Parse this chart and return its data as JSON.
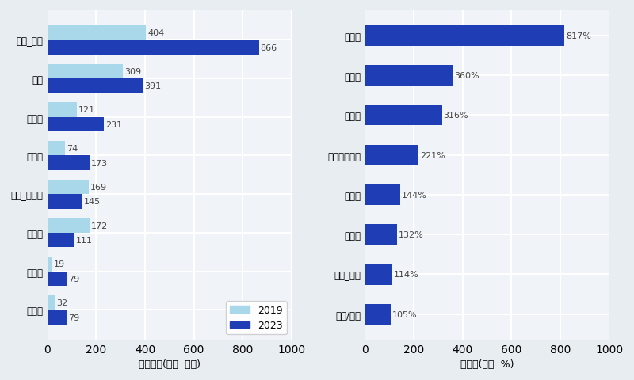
{
  "left_categories": [
    "숙박_호텔",
    "쇼핑",
    "음식점",
    "카지노",
    "숙박_호텔외",
    "면세점",
    "렌터카",
    "골프장"
  ],
  "left_2019": [
    404,
    309,
    121,
    74,
    169,
    172,
    19,
    32
  ],
  "left_2023": [
    866,
    391,
    231,
    173,
    145,
    111,
    79,
    79
  ],
  "left_xlabel": "이용금액(단위: 억원)",
  "left_xlim": [
    0,
    1000
  ],
  "left_xticks": [
    0,
    200,
    400,
    600,
    800,
    1000
  ],
  "color_2019": "#a8d8ea",
  "color_2023": "#1f3db5",
  "right_categories": [
    "피부과",
    "주유소",
    "렌터카",
    "종합레저타운",
    "골프장",
    "카지노",
    "숙박_호텔",
    "제과/커피"
  ],
  "right_values": [
    817,
    360,
    316,
    221,
    144,
    132,
    114,
    105
  ],
  "right_xlabel": "증감률(단위: %)",
  "right_xlim": [
    0,
    1000
  ],
  "right_xticks": [
    0,
    200,
    400,
    600,
    800,
    1000
  ],
  "right_color": "#1f3db5",
  "legend_2019": "2019",
  "legend_2023": "2023",
  "bg_color": "#f0f4f8",
  "grid_color": "#ffffff",
  "fig_bg": "#e8edf2"
}
